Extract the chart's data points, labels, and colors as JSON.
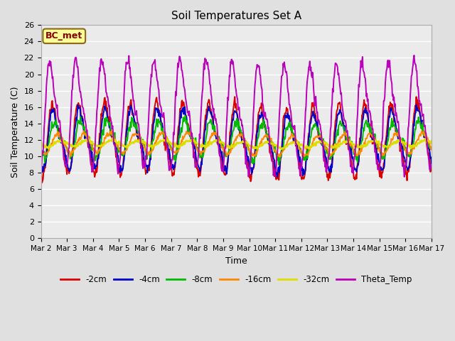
{
  "title": "Soil Temperatures Set A",
  "xlabel": "Time",
  "ylabel": "Soil Temperature (C)",
  "ylim": [
    0,
    26
  ],
  "yticks": [
    0,
    2,
    4,
    6,
    8,
    10,
    12,
    14,
    16,
    18,
    20,
    22,
    24,
    26
  ],
  "fig_bg": "#e0e0e0",
  "ax_bg": "#ebebeb",
  "grid_color": "#ffffff",
  "annotation_text": "BC_met",
  "annotation_fg": "#8b0000",
  "annotation_bg": "#ffff99",
  "annotation_border": "#8b6914",
  "series": [
    {
      "label": "-2cm",
      "color": "#dd0000",
      "lw": 1.4
    },
    {
      "label": "-4cm",
      "color": "#0000cc",
      "lw": 1.4
    },
    {
      "label": "-8cm",
      "color": "#00bb00",
      "lw": 1.4
    },
    {
      "label": "-16cm",
      "color": "#ff8800",
      "lw": 1.4
    },
    {
      "label": "-32cm",
      "color": "#dddd00",
      "lw": 1.8
    },
    {
      "label": "Theta_Temp",
      "color": "#bb00bb",
      "lw": 1.4
    }
  ],
  "x_tick_labels": [
    "Mar 2",
    "Mar 3",
    "Mar 4",
    "Mar 5",
    "Mar 6",
    "Mar 7",
    "Mar 8",
    "Mar 9",
    "Mar 10",
    "Mar 11",
    "Mar 12",
    "Mar 13",
    "Mar 14",
    "Mar 15",
    "Mar 16",
    "Mar 17"
  ],
  "n_days": 15,
  "samples_per_day": 48
}
